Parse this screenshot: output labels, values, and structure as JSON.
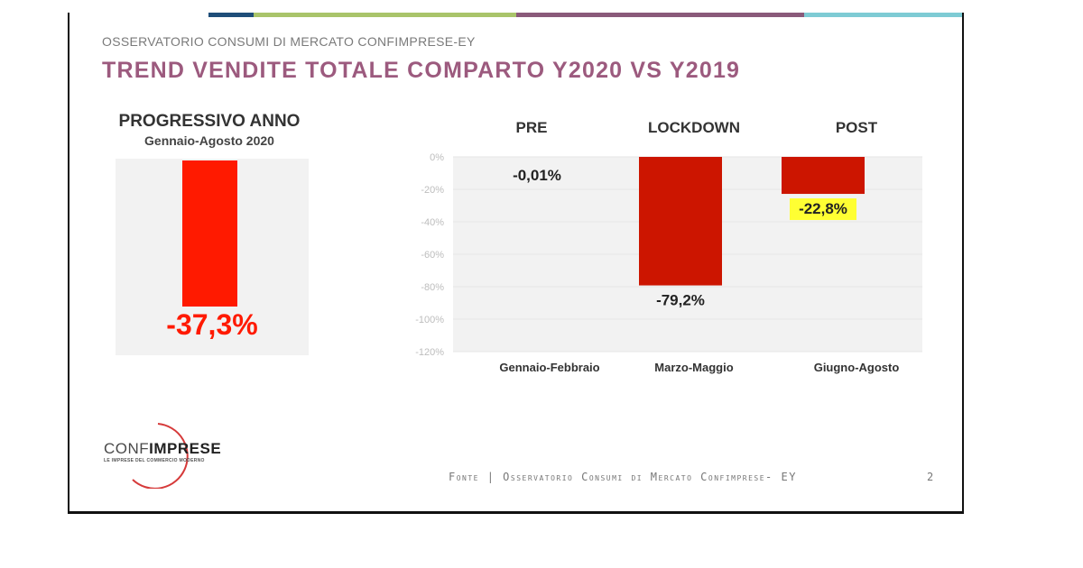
{
  "header": {
    "kicker": "OSSERVATORIO CONSUMI DI MERCATO CONFIMPRESE-EY",
    "title": "TREND VENDITE TOTALE COMPARTO Y2020 VS Y2019"
  },
  "colors": {
    "title": "#9c5a7e",
    "bar_left": "#ff1a00",
    "bar_main": "#cc1500",
    "highlight": "#ffff33",
    "panel_bg": "#f2f2f2",
    "topbar": [
      "#1f4e79",
      "#a9c46a",
      "#8a5a7a",
      "#7ecbd4"
    ]
  },
  "left_panel": {
    "title": "PROGRESSIVO ANNO",
    "subtitle": "Gennaio-Agosto 2020",
    "value": -37.3,
    "value_label": "-37,3%"
  },
  "chart_data": {
    "type": "bar",
    "categories": [
      "Gennaio-Febbraio",
      "Marzo-Maggio",
      "Giugno-Agosto"
    ],
    "period_labels": [
      "PRE",
      "LOCKDOWN",
      "POST"
    ],
    "values": [
      -0.01,
      -79.2,
      -22.8
    ],
    "data_labels": [
      "-0,01%",
      "-79,2%",
      "-22,8%"
    ],
    "highlighted": [
      false,
      false,
      true
    ],
    "ylim": [
      -120,
      0
    ],
    "yticks": [
      0,
      -20,
      -40,
      -60,
      -80,
      -100,
      -120
    ],
    "ytick_labels": [
      "0%",
      "-20%",
      "-40%",
      "-60%",
      "-80%",
      "-100%",
      "-120%"
    ]
  },
  "logo": {
    "name_part1": "CONF",
    "name_part2": "IMPRESE",
    "tagline": "LE IMPRESE DEL COMMERCIO MODERNO"
  },
  "footer": {
    "source": "Fonte | Osservatorio Consumi di Mercato Confimprese- EY",
    "page": "2"
  }
}
